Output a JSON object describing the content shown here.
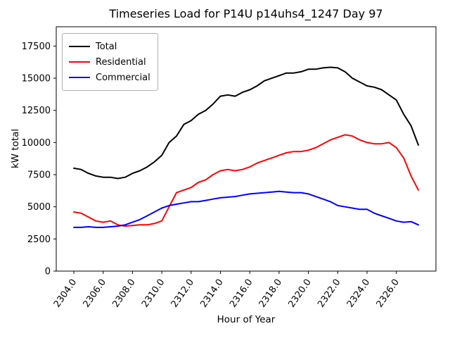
{
  "chart_data": {
    "type": "line",
    "title": "Timeseries Load for P14U p14uhs4_1247  Day 97",
    "xlabel": "Hour of Year",
    "ylabel": "kW total",
    "xlim": [
      2302.8,
      2328.7
    ],
    "ylim": [
      0,
      19000
    ],
    "grid": false,
    "legend_position": "upper left",
    "x_ticks": [
      2304,
      2306,
      2308,
      2310,
      2312,
      2314,
      2316,
      2318,
      2320,
      2322,
      2324,
      2326
    ],
    "x_tick_labels": [
      "2304.0",
      "2306.0",
      "2308.0",
      "2310.0",
      "2312.0",
      "2314.0",
      "2316.0",
      "2318.0",
      "2320.0",
      "2322.0",
      "2324.0",
      "2326.0"
    ],
    "y_ticks": [
      0,
      2500,
      5000,
      7500,
      10000,
      12500,
      15000,
      17500
    ],
    "y_tick_labels": [
      "0",
      "2500",
      "5000",
      "7500",
      "10000",
      "12500",
      "15000",
      "17500"
    ],
    "x": [
      2304,
      2304.5,
      2305,
      2305.5,
      2306,
      2306.5,
      2307,
      2307.5,
      2308,
      2308.5,
      2309,
      2309.5,
      2310,
      2310.5,
      2311,
      2311.5,
      2312,
      2312.5,
      2313,
      2313.5,
      2314,
      2314.5,
      2315,
      2315.5,
      2316,
      2316.5,
      2317,
      2317.5,
      2318,
      2318.5,
      2319,
      2319.5,
      2320,
      2320.5,
      2321,
      2321.5,
      2322,
      2322.5,
      2323,
      2323.5,
      2324,
      2324.5,
      2325,
      2325.5,
      2326,
      2326.5,
      2327,
      2327.5
    ],
    "series": [
      {
        "name": "Total",
        "color": "#000000",
        "linewidth": 2,
        "values": [
          8000,
          7900,
          7600,
          7400,
          7300,
          7300,
          7200,
          7300,
          7600,
          7800,
          8100,
          8500,
          9000,
          10000,
          10500,
          11400,
          11700,
          12200,
          12500,
          13000,
          13600,
          13700,
          13600,
          13900,
          14100,
          14400,
          14800,
          15000,
          15200,
          15400,
          15400,
          15500,
          15700,
          15700,
          15800,
          15850,
          15800,
          15500,
          15000,
          14700,
          14400,
          14300,
          14100,
          13700,
          13300,
          12200,
          11300,
          9800
        ]
      },
      {
        "name": "Residential",
        "color": "#ff0000",
        "linewidth": 2,
        "values": [
          4600,
          4500,
          4200,
          3900,
          3800,
          3900,
          3600,
          3500,
          3550,
          3600,
          3600,
          3700,
          3900,
          5000,
          6100,
          6300,
          6500,
          6900,
          7100,
          7500,
          7800,
          7900,
          7800,
          7900,
          8100,
          8400,
          8600,
          8800,
          9000,
          9200,
          9300,
          9300,
          9400,
          9600,
          9900,
          10200,
          10400,
          10600,
          10500,
          10200,
          10000,
          9900,
          9900,
          10000,
          9600,
          8800,
          7400,
          6300
        ]
      },
      {
        "name": "Commercial",
        "color": "#0000ff",
        "linewidth": 2,
        "values": [
          3400,
          3400,
          3450,
          3400,
          3400,
          3450,
          3500,
          3600,
          3800,
          4000,
          4300,
          4600,
          4900,
          5100,
          5200,
          5300,
          5400,
          5400,
          5500,
          5600,
          5700,
          5750,
          5800,
          5900,
          6000,
          6050,
          6100,
          6150,
          6200,
          6150,
          6100,
          6100,
          6000,
          5800,
          5600,
          5400,
          5100,
          5000,
          4900,
          4800,
          4800,
          4500,
          4300,
          4100,
          3900,
          3800,
          3850,
          3600
        ]
      }
    ]
  }
}
